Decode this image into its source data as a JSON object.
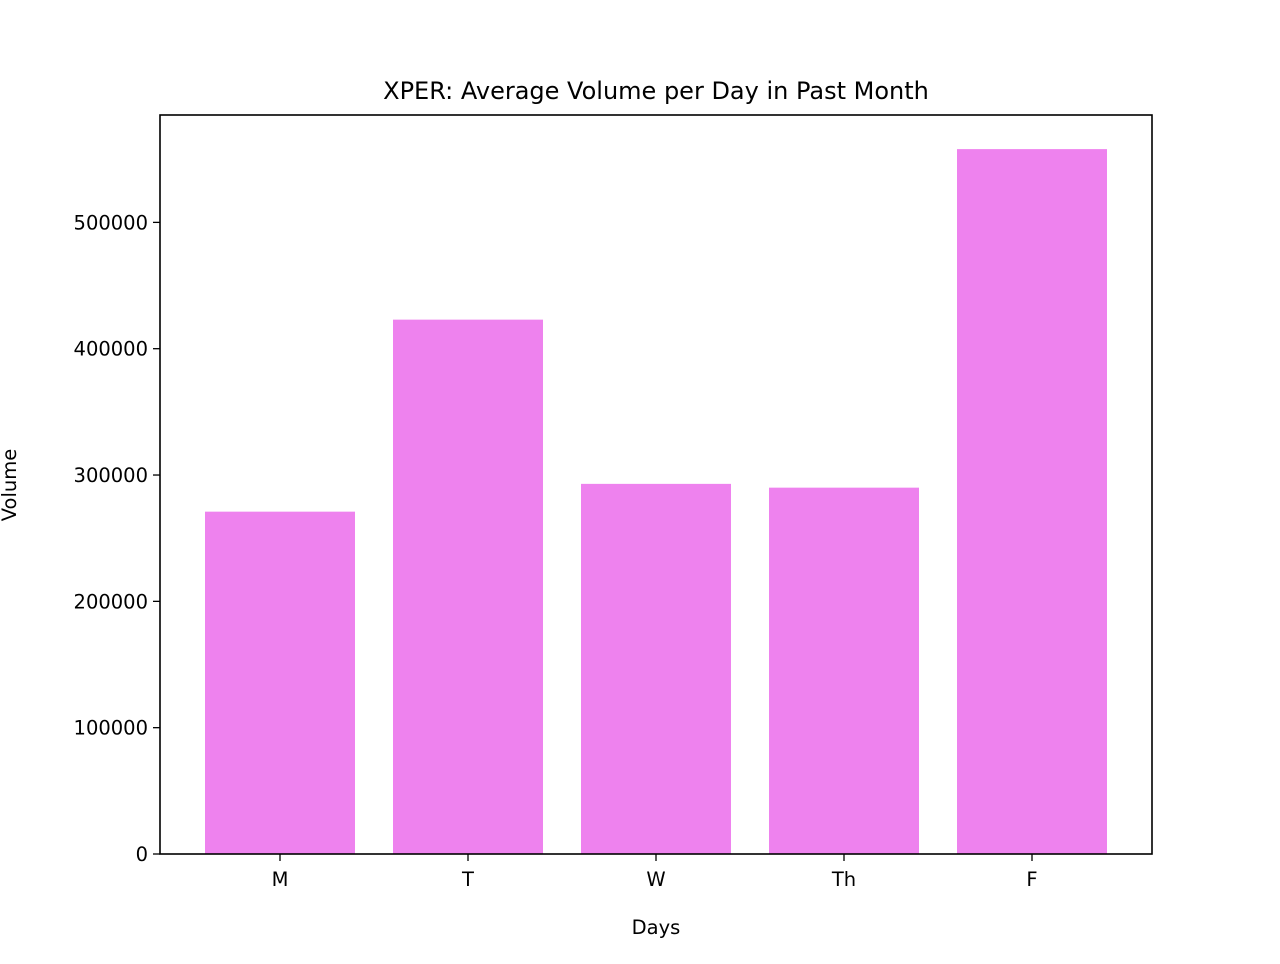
{
  "chart_data": {
    "type": "bar",
    "title": "XPER: Average Volume per Day in Past Month",
    "xlabel": "Days",
    "ylabel": "Volume",
    "categories": [
      "M",
      "T",
      "W",
      "Th",
      "F"
    ],
    "values": [
      271000,
      423000,
      293000,
      290000,
      558000
    ],
    "ylim": [
      0,
      585000
    ],
    "yticks": [
      0,
      100000,
      200000,
      300000,
      400000,
      500000
    ],
    "ytick_labels": [
      "0",
      "100000",
      "200000",
      "300000",
      "400000",
      "500000"
    ],
    "bar_color": "#ee82ee",
    "grid": false
  }
}
